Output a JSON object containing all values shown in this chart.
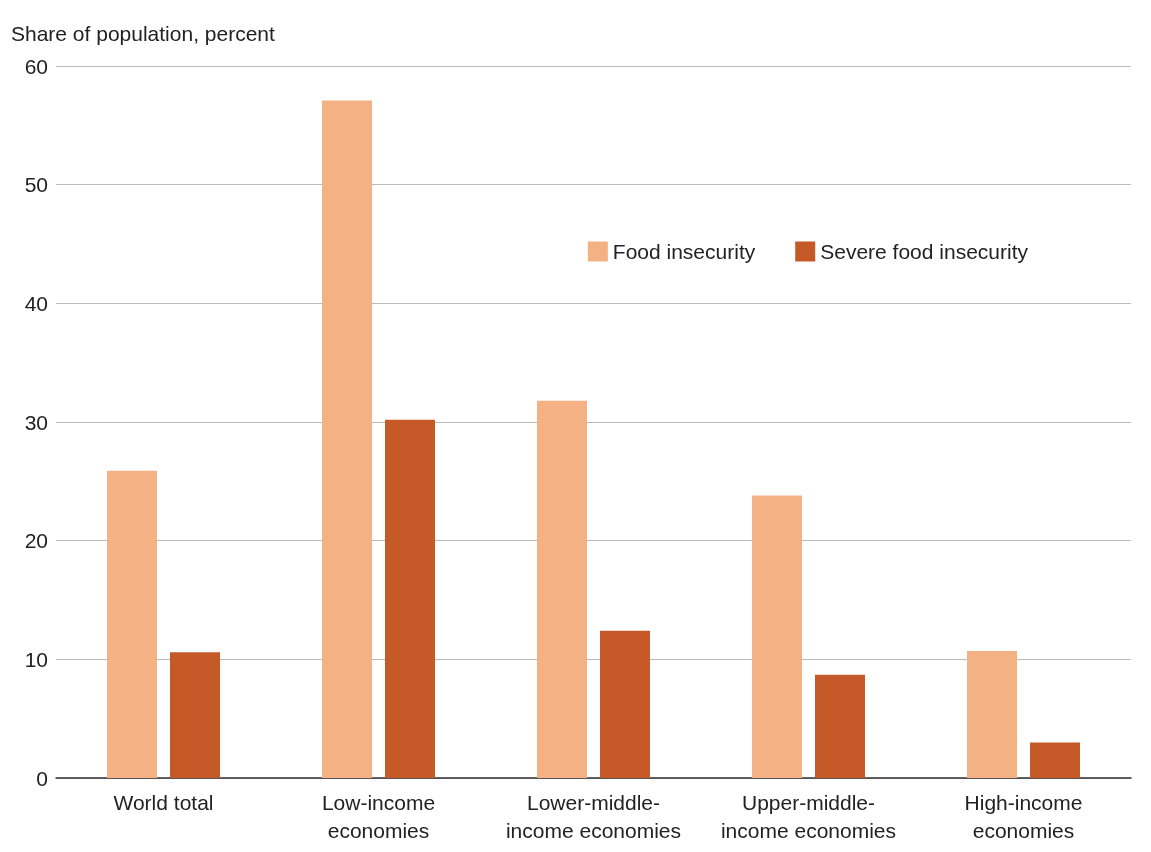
{
  "chart_data": {
    "type": "bar",
    "ylabel": "Share of population, percent",
    "categories": [
      "World total",
      "Low-income\neconomies",
      "Lower-middle-\nincome economies",
      "Upper-middle-\nincome economies",
      "High-income\neconomies"
    ],
    "series": [
      {
        "name": "Food insecurity",
        "color": "#f4b183",
        "values": [
          25.9,
          57.1,
          31.8,
          23.8,
          10.7
        ]
      },
      {
        "name": "Severe food insecurity",
        "color": "#c55a28",
        "values": [
          10.6,
          30.2,
          12.4,
          8.7,
          3.0
        ]
      }
    ],
    "ylim": [
      0,
      60
    ],
    "yticks": [
      0,
      10,
      20,
      30,
      40,
      50,
      60
    ],
    "grid": "y",
    "legend": "top right"
  }
}
